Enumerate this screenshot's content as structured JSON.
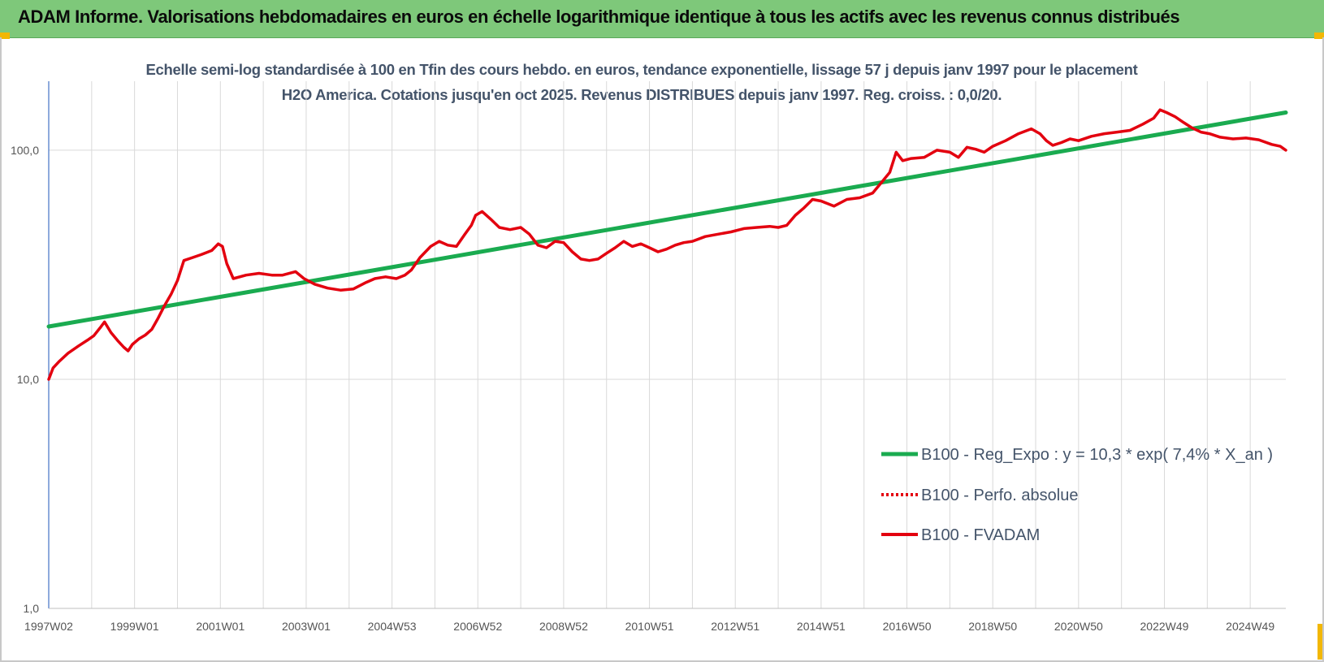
{
  "banner": {
    "title": "ADAM Informe. Valorisations hebdomadaires en euros en échelle logarithmique identique à tous les actifs avec les revenus connus distribués"
  },
  "colors": {
    "banner_bg": "#7ec87a",
    "regression": "#1aab50",
    "fvadam": "#e3000f",
    "gridline": "#d9d9d9",
    "axis": "#4472c4"
  },
  "chart_data": {
    "type": "line",
    "title": "Echelle semi-log standardisée à 100 en Tfin des cours hebdo. en euros, tendance exponentielle, lissage 57 j depuis janv 1997 pour le placement H2O America. Cotations jusqu'en oct 2025. Revenus DISTRIBUES depuis janv 1997. Reg. croiss. : 0,0/20.",
    "y_scale": "log",
    "ylim": [
      1,
      200
    ],
    "y_ticks": [
      1,
      10,
      100
    ],
    "y_tick_labels": [
      "1,0",
      "10,0",
      "100,0"
    ],
    "xlim": [
      1997.0,
      2025.83
    ],
    "x_ticks": [
      1997.0,
      1999.0,
      2001.0,
      2003.0,
      2005.0,
      2007.0,
      2009.0,
      2011.0,
      2013.0,
      2015.0,
      2017.0,
      2019.0,
      2021.0,
      2023.0,
      2025.0
    ],
    "x_tick_labels": [
      "1997W02",
      "1999W01",
      "2001W01",
      "2003W01",
      "2004W53",
      "2006W52",
      "2008W52",
      "2010W51",
      "2012W51",
      "2014W51",
      "2016W50",
      "2018W50",
      "2020W50",
      "2022W49",
      "2024W49"
    ],
    "grid": true,
    "legend_position": "bottom-right",
    "series": [
      {
        "name": "B100 - Reg_Expo : y = 10,3 * exp( 7,4% *  X_an )",
        "style": "solid",
        "color": "#1aab50",
        "x": [
          1997.0,
          2025.83
        ],
        "values": [
          17.0,
          146
        ]
      },
      {
        "name": "B100 - Perfo. absolue",
        "style": "dotted",
        "color": "#e3000f",
        "x": [],
        "values": []
      },
      {
        "name": "B100 - FVADAM",
        "style": "solid",
        "color": "#e3000f",
        "x": [
          1997.0,
          1997.1,
          1997.25,
          1997.45,
          1997.7,
          1997.9,
          1998.05,
          1998.2,
          1998.3,
          1998.45,
          1998.6,
          1998.75,
          1998.85,
          1998.95,
          1999.1,
          1999.25,
          1999.4,
          1999.55,
          1999.7,
          1999.85,
          2000.0,
          2000.15,
          2000.35,
          2000.55,
          2000.8,
          2000.95,
          2001.05,
          2001.15,
          2001.3,
          2001.6,
          2001.9,
          2002.2,
          2002.45,
          2002.75,
          2002.95,
          2003.2,
          2003.5,
          2003.8,
          2004.1,
          2004.4,
          2004.6,
          2004.85,
          2005.1,
          2005.3,
          2005.45,
          2005.65,
          2005.9,
          2006.1,
          2006.3,
          2006.5,
          2006.7,
          2006.85,
          2006.95,
          2007.1,
          2007.3,
          2007.5,
          2007.75,
          2008.0,
          2008.2,
          2008.4,
          2008.6,
          2008.8,
          2009.0,
          2009.2,
          2009.4,
          2009.6,
          2009.8,
          2010.0,
          2010.2,
          2010.4,
          2010.6,
          2010.8,
          2011.0,
          2011.2,
          2011.4,
          2011.6,
          2011.8,
          2012.0,
          2012.3,
          2012.6,
          2012.9,
          2013.2,
          2013.5,
          2013.8,
          2014.0,
          2014.2,
          2014.4,
          2014.6,
          2014.8,
          2015.0,
          2015.3,
          2015.6,
          2015.9,
          2016.2,
          2016.4,
          2016.6,
          2016.75,
          2016.9,
          2017.1,
          2017.4,
          2017.7,
          2018.0,
          2018.2,
          2018.4,
          2018.6,
          2018.8,
          2019.0,
          2019.3,
          2019.6,
          2019.9,
          2020.1,
          2020.25,
          2020.4,
          2020.6,
          2020.8,
          2021.0,
          2021.3,
          2021.6,
          2021.9,
          2022.2,
          2022.5,
          2022.75,
          2022.9,
          2023.05,
          2023.25,
          2023.45,
          2023.65,
          2023.85,
          2024.05,
          2024.3,
          2024.6,
          2024.9,
          2025.2,
          2025.5,
          2025.7,
          2025.83
        ],
        "values": [
          10.0,
          11.2,
          12.0,
          13.0,
          14.0,
          14.8,
          15.5,
          16.8,
          17.8,
          16.0,
          14.8,
          13.8,
          13.3,
          14.2,
          15.0,
          15.6,
          16.5,
          18.5,
          21.0,
          23.5,
          27.0,
          33.0,
          34.0,
          35.0,
          36.5,
          39.0,
          38.0,
          32.0,
          27.5,
          28.5,
          29.0,
          28.5,
          28.5,
          29.5,
          27.5,
          26.0,
          25.0,
          24.5,
          24.8,
          26.5,
          27.5,
          28.0,
          27.5,
          28.5,
          30.0,
          34.0,
          38.0,
          40.0,
          38.5,
          38.0,
          43.0,
          47.0,
          52.0,
          54.0,
          50.0,
          46.0,
          45.0,
          46.0,
          43.0,
          38.5,
          37.5,
          40.0,
          39.5,
          36.0,
          33.5,
          33.0,
          33.5,
          35.5,
          37.5,
          40.0,
          38.0,
          39.0,
          37.5,
          36.0,
          37.0,
          38.5,
          39.5,
          40.0,
          42.0,
          43.0,
          44.0,
          45.5,
          46.0,
          46.5,
          46.0,
          47.0,
          52.0,
          56.0,
          61.0,
          60.0,
          57.0,
          61.0,
          62.0,
          65.0,
          72.0,
          80.0,
          98.0,
          90.0,
          92.0,
          93.0,
          100.0,
          98.0,
          93.0,
          103.0,
          101.0,
          98.0,
          104.0,
          110.0,
          118.0,
          124.0,
          118.0,
          110.0,
          105.0,
          108.0,
          112.0,
          110.0,
          115.0,
          118.0,
          120.0,
          122.0,
          130.0,
          138.0,
          150.0,
          146.0,
          140.0,
          132.0,
          125.0,
          120.0,
          118.0,
          114.0,
          112.0,
          113.0,
          111.0,
          106.0,
          104.0,
          100.0
        ]
      }
    ]
  }
}
